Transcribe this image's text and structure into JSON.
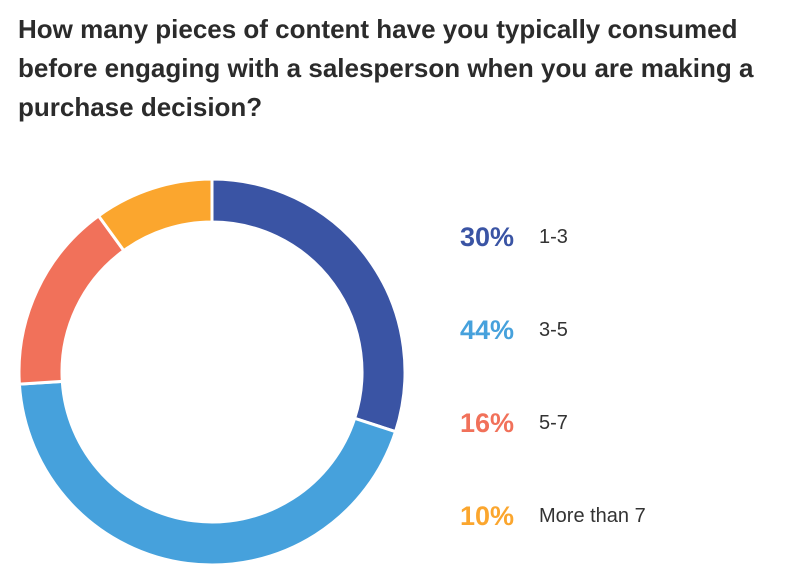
{
  "chart_data": {
    "type": "pie",
    "title": "How many pieces of content have you typically consumed before engaging with a salesperson when you are making a purchase decision?",
    "slices": [
      {
        "label": "1-3",
        "value": 30,
        "value_label": "30%",
        "color": "#3a54a4"
      },
      {
        "label": "3-5",
        "value": 44,
        "value_label": "44%",
        "color": "#46a1dc"
      },
      {
        "label": "5-7",
        "value": 16,
        "value_label": "16%",
        "color": "#f1715a"
      },
      {
        "label": "More than 7",
        "value": 10,
        "value_label": "10%",
        "color": "#fba62e"
      }
    ],
    "donut": true,
    "legend_position": "right"
  }
}
